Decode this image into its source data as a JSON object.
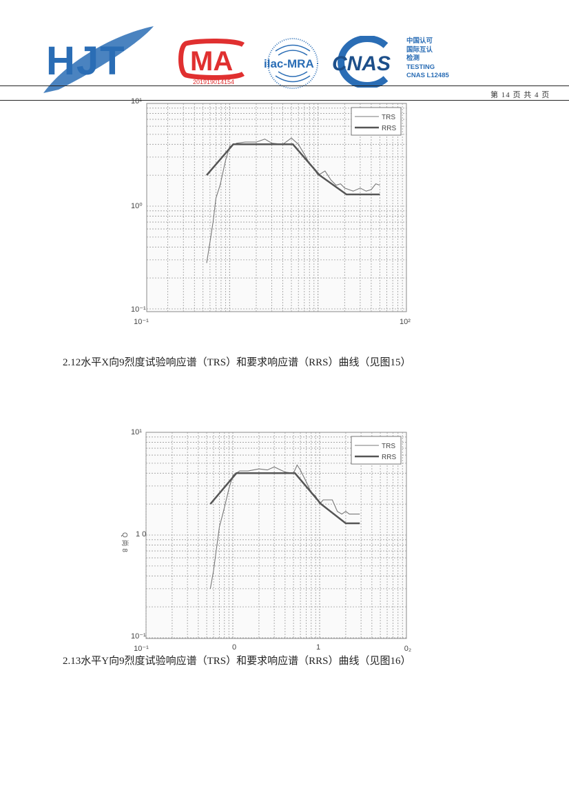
{
  "header": {
    "logos": {
      "hjt": "HJT",
      "cma": "MA",
      "ilac": "ilac-MRA",
      "cnas": "CNAS"
    },
    "cma_number": "201919014154",
    "cnas_text": [
      "中国认可",
      "国际互认",
      "检测",
      "TESTING",
      "CNAS L12485"
    ],
    "page_number": "第 14 页 共 4 页",
    "colors": {
      "brand_blue": "#2a6db5",
      "cma_red": "#e03030"
    }
  },
  "captions": [
    "2.12水平X向9烈度试验响应谱（TRS）和要求响应谱（RRS）曲线（见图15）",
    "2.13水平Y向9烈度试验响应谱（TRS）和要求响应谱（RRS）曲线（见图16）"
  ],
  "chart_data": [
    {
      "type": "line",
      "x_scale": "log",
      "y_scale": "log",
      "xlim": [
        0.1,
        100
      ],
      "ylim": [
        0.1,
        10
      ],
      "grid": true,
      "legend": "top-right",
      "x_tick_labels": [
        "10⁻¹",
        "10²"
      ],
      "y_tick_labels": [
        "10¹",
        "10⁰",
        "10⁻¹"
      ],
      "series": [
        {
          "name": "TRS",
          "color": "#777777",
          "x": [
            0.55,
            0.6,
            0.65,
            0.7,
            0.78,
            0.9,
            1.0,
            1.2,
            1.5,
            2,
            2.5,
            3,
            4,
            5,
            6,
            7,
            8,
            9,
            10,
            11,
            12,
            14,
            16,
            18,
            20,
            25,
            30,
            35,
            40,
            45,
            50
          ],
          "y": [
            0.28,
            0.45,
            0.7,
            1.2,
            1.6,
            2.8,
            3.8,
            4.1,
            4.2,
            4.2,
            4.5,
            4.1,
            4.0,
            4.6,
            4.0,
            3.2,
            2.6,
            2.3,
            2.0,
            2.1,
            2.2,
            1.8,
            1.6,
            1.65,
            1.5,
            1.4,
            1.5,
            1.4,
            1.45,
            1.65,
            1.6
          ]
        },
        {
          "name": "RRS",
          "color": "#555555",
          "x": [
            0.55,
            1.1,
            5.2,
            10.4,
            21,
            50
          ],
          "y": [
            2.0,
            4.0,
            4.0,
            2.0,
            1.3,
            1.3
          ]
        }
      ]
    },
    {
      "type": "line",
      "x_scale": "log",
      "y_scale": "log",
      "xlim": [
        0.1,
        100
      ],
      "ylim": [
        0.1,
        10
      ],
      "grid": true,
      "legend": "top-right",
      "x_tick_labels": [
        "10⁻¹",
        "0",
        "1",
        "0₂"
      ],
      "y_tick_labels": [
        "10¹",
        "1 0",
        "10⁻¹"
      ],
      "y_side_label": "Q 尚 8",
      "series": [
        {
          "name": "TRS",
          "color": "#777777",
          "x": [
            0.55,
            0.6,
            0.65,
            0.7,
            0.78,
            0.9,
            1.0,
            1.2,
            1.5,
            2,
            2.5,
            3,
            4,
            5,
            5.5,
            6,
            7,
            8,
            9,
            10,
            11,
            12,
            14,
            16,
            18,
            20,
            22,
            25,
            29
          ],
          "y": [
            0.3,
            0.45,
            0.75,
            1.2,
            1.7,
            2.8,
            3.8,
            4.2,
            4.2,
            4.4,
            4.3,
            4.6,
            4.1,
            4.0,
            4.8,
            4.3,
            3.3,
            2.6,
            2.4,
            2.0,
            2.2,
            2.2,
            2.2,
            1.7,
            1.6,
            1.7,
            1.6,
            1.6,
            1.6
          ]
        },
        {
          "name": "RRS",
          "color": "#555555",
          "x": [
            0.55,
            1.1,
            5.2,
            10.4,
            20,
            29
          ],
          "y": [
            2.0,
            4.0,
            4.0,
            2.0,
            1.3,
            1.3
          ]
        }
      ]
    }
  ]
}
